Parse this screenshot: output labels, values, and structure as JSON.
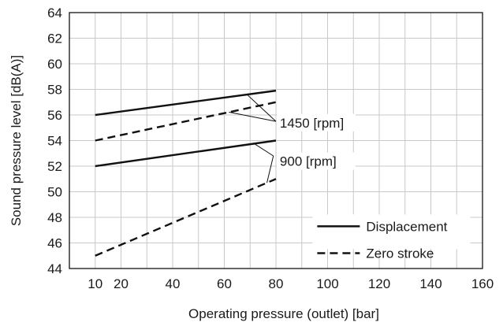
{
  "chart_data": {
    "type": "line",
    "xlabel": "Operating pressure (outlet) [bar]",
    "ylabel": "Sound pressure level [dB(A)]",
    "xlim": [
      0,
      160
    ],
    "ylim": [
      44,
      64
    ],
    "xticks": [
      10,
      20,
      40,
      60,
      80,
      100,
      120,
      140,
      160
    ],
    "yticks": [
      44,
      46,
      48,
      50,
      52,
      54,
      56,
      58,
      60,
      62,
      64
    ],
    "grid": true,
    "legend_position": "bottom-right",
    "legend": [
      {
        "label": "Displacement",
        "style": "solid"
      },
      {
        "label": "Zero stroke",
        "style": "dashed"
      }
    ],
    "series": [
      {
        "legend": "Displacement",
        "speed": "1450 [rpm]",
        "style": "solid",
        "x": [
          10,
          80
        ],
        "y": [
          56,
          57.9
        ]
      },
      {
        "legend": "Zero stroke",
        "speed": "1450 [rpm]",
        "style": "dashed",
        "x": [
          10,
          80
        ],
        "y": [
          54,
          57
        ]
      },
      {
        "legend": "Displacement",
        "speed": "900 [rpm]",
        "style": "solid",
        "x": [
          10,
          80
        ],
        "y": [
          52,
          54
        ]
      },
      {
        "legend": "Zero stroke",
        "speed": "900 [rpm]",
        "style": "dashed",
        "x": [
          10,
          80
        ],
        "y": [
          45,
          51
        ]
      }
    ],
    "annotations": [
      {
        "text": "1450 [rpm]",
        "targets": [
          0,
          1
        ]
      },
      {
        "text": "900 [rpm]",
        "targets": [
          2,
          3
        ]
      }
    ]
  }
}
